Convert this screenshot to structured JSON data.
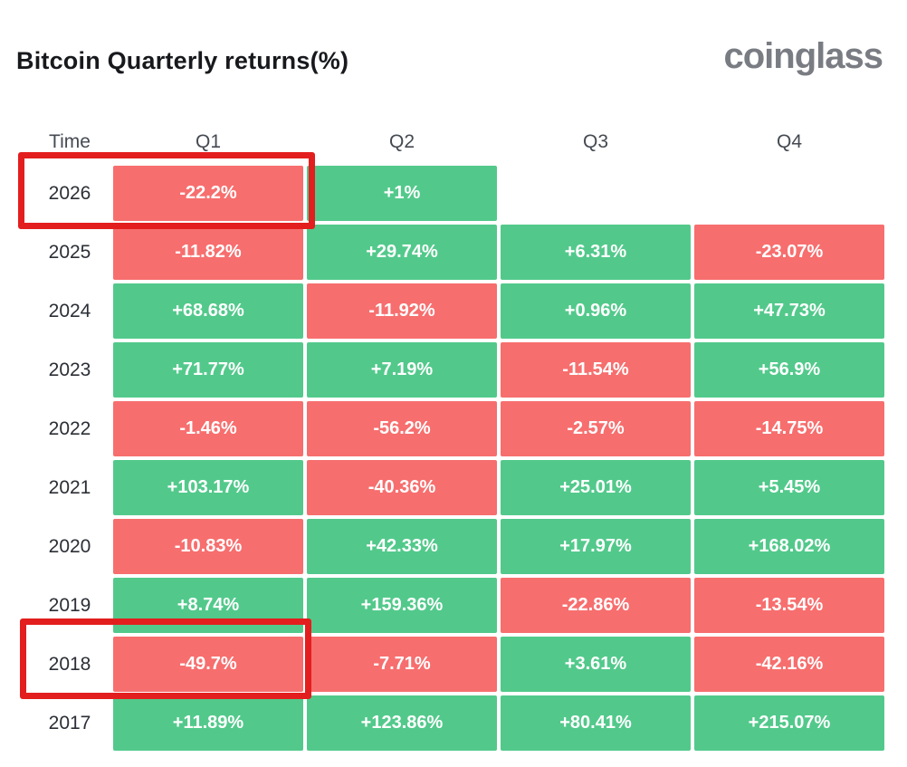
{
  "page": {
    "title": "Bitcoin Quarterly returns(%)",
    "brand": "coinglass"
  },
  "table": {
    "headers": {
      "time": "Time",
      "q1": "Q1",
      "q2": "Q2",
      "q3": "Q3",
      "q4": "Q4"
    },
    "rows": [
      {
        "year": "2026",
        "cells": [
          {
            "label": "-22.2%",
            "state": "neg"
          },
          {
            "label": "+1%",
            "state": "pos"
          },
          {
            "label": "",
            "state": "empty"
          },
          {
            "label": "",
            "state": "empty"
          }
        ]
      },
      {
        "year": "2025",
        "cells": [
          {
            "label": "-11.82%",
            "state": "neg"
          },
          {
            "label": "+29.74%",
            "state": "pos"
          },
          {
            "label": "+6.31%",
            "state": "pos"
          },
          {
            "label": "-23.07%",
            "state": "neg"
          }
        ]
      },
      {
        "year": "2024",
        "cells": [
          {
            "label": "+68.68%",
            "state": "pos"
          },
          {
            "label": "-11.92%",
            "state": "neg"
          },
          {
            "label": "+0.96%",
            "state": "pos"
          },
          {
            "label": "+47.73%",
            "state": "pos"
          }
        ]
      },
      {
        "year": "2023",
        "cells": [
          {
            "label": "+71.77%",
            "state": "pos"
          },
          {
            "label": "+7.19%",
            "state": "pos"
          },
          {
            "label": "-11.54%",
            "state": "neg"
          },
          {
            "label": "+56.9%",
            "state": "pos"
          }
        ]
      },
      {
        "year": "2022",
        "cells": [
          {
            "label": "-1.46%",
            "state": "neg"
          },
          {
            "label": "-56.2%",
            "state": "neg"
          },
          {
            "label": "-2.57%",
            "state": "neg"
          },
          {
            "label": "-14.75%",
            "state": "neg"
          }
        ]
      },
      {
        "year": "2021",
        "cells": [
          {
            "label": "+103.17%",
            "state": "pos"
          },
          {
            "label": "-40.36%",
            "state": "neg"
          },
          {
            "label": "+25.01%",
            "state": "pos"
          },
          {
            "label": "+5.45%",
            "state": "pos"
          }
        ]
      },
      {
        "year": "2020",
        "cells": [
          {
            "label": "-10.83%",
            "state": "neg"
          },
          {
            "label": "+42.33%",
            "state": "pos"
          },
          {
            "label": "+17.97%",
            "state": "pos"
          },
          {
            "label": "+168.02%",
            "state": "pos"
          }
        ]
      },
      {
        "year": "2019",
        "cells": [
          {
            "label": "+8.74%",
            "state": "pos"
          },
          {
            "label": "+159.36%",
            "state": "pos"
          },
          {
            "label": "-22.86%",
            "state": "neg"
          },
          {
            "label": "-13.54%",
            "state": "neg"
          }
        ]
      },
      {
        "year": "2018",
        "cells": [
          {
            "label": "-49.7%",
            "state": "neg"
          },
          {
            "label": "-7.71%",
            "state": "neg"
          },
          {
            "label": "+3.61%",
            "state": "pos"
          },
          {
            "label": "-42.16%",
            "state": "neg"
          }
        ]
      },
      {
        "year": "2017",
        "cells": [
          {
            "label": "+11.89%",
            "state": "pos"
          },
          {
            "label": "+123.86%",
            "state": "pos"
          },
          {
            "label": "+80.41%",
            "state": "pos"
          },
          {
            "label": "+215.07%",
            "state": "pos"
          }
        ]
      }
    ]
  },
  "annotations": [
    {
      "target": "2026 Q1",
      "shape": "red-rectangle-highlight"
    },
    {
      "target": "2018 Q1",
      "shape": "red-rectangle-highlight"
    }
  ],
  "colors": {
    "positive": "#52C98B",
    "negative": "#F76E6E",
    "highlight": "#E31E1E"
  },
  "chart_data": {
    "type": "heatmap",
    "title": "Bitcoin Quarterly returns(%)",
    "columns": [
      "Q1",
      "Q2",
      "Q3",
      "Q4"
    ],
    "rows": [
      "2026",
      "2025",
      "2024",
      "2023",
      "2022",
      "2021",
      "2020",
      "2019",
      "2018",
      "2017"
    ],
    "values_pct": [
      [
        -22.2,
        1,
        null,
        null
      ],
      [
        -11.82,
        29.74,
        6.31,
        -23.07
      ],
      [
        68.68,
        -11.92,
        0.96,
        47.73
      ],
      [
        71.77,
        7.19,
        -11.54,
        56.9
      ],
      [
        -1.46,
        -56.2,
        -2.57,
        -14.75
      ],
      [
        103.17,
        -40.36,
        25.01,
        5.45
      ],
      [
        -10.83,
        42.33,
        17.97,
        168.02
      ],
      [
        8.74,
        159.36,
        -22.86,
        -13.54
      ],
      [
        -49.7,
        -7.71,
        3.61,
        -42.16
      ],
      [
        11.89,
        123.86,
        80.41,
        215.07
      ]
    ],
    "color_encoding": {
      "positive": "green",
      "negative": "red",
      "missing": "blank"
    },
    "highlighted_cells": [
      "2026 Q1",
      "2018 Q1"
    ],
    "legend": "none",
    "grid": "off"
  }
}
